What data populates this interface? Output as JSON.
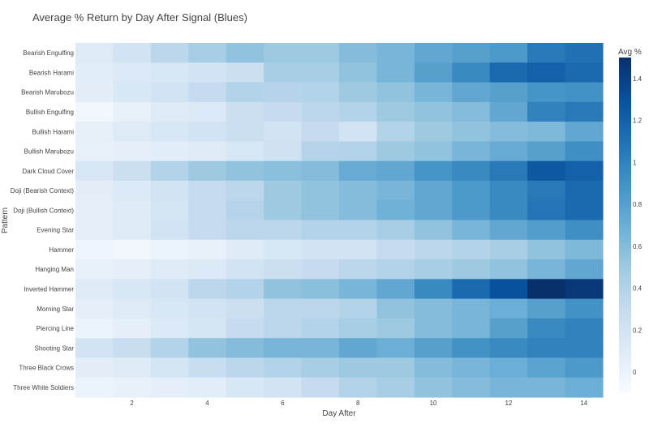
{
  "chart_data": {
    "type": "heatmap",
    "title": "Average % Return by Day After Signal (Blues)",
    "xlabel": "Day After",
    "ylabel": "Pattern",
    "colorbar_title": "Avg %",
    "colorscale": "Blues",
    "zrange": [
      -0.1,
      1.5
    ],
    "x": [
      1,
      2,
      3,
      4,
      5,
      6,
      7,
      8,
      9,
      10,
      11,
      12,
      13,
      14
    ],
    "x_tick_values": [
      2,
      4,
      6,
      8,
      10,
      12,
      14
    ],
    "x_tick_labels": [
      "2",
      "4",
      "6",
      "8",
      "10",
      "12",
      "14"
    ],
    "colorbar_tick_values": [
      0,
      0.2,
      0.4,
      0.6,
      0.8,
      1,
      1.2,
      1.4
    ],
    "colorbar_tick_labels": [
      "0",
      "0.2",
      "0.4",
      "0.6",
      "0.8",
      "1",
      "1.2",
      "1.4"
    ],
    "y": [
      "Bearish Engulfing",
      "Bearish Harami",
      "Bearish Marubozu",
      "Bullish Engulfing",
      "Bullish Harami",
      "Bullish Marubozu",
      "Dark Cloud Cover",
      "Doji (Bearish Context)",
      "Doji (Bullish Context)",
      "Evening Star",
      "Hammer",
      "Hanging Man",
      "Inverted Hammer",
      "Morning Star",
      "Piercing Line",
      "Shooting Star",
      "Three Black Crows",
      "Three White Soldiers"
    ],
    "z": [
      [
        0.1,
        0.2,
        0.35,
        0.45,
        0.55,
        0.5,
        0.5,
        0.6,
        0.65,
        0.75,
        0.8,
        0.85,
        1.05,
        1.1
      ],
      [
        0.08,
        0.12,
        0.15,
        0.2,
        0.25,
        0.45,
        0.45,
        0.55,
        0.65,
        0.8,
        0.95,
        1.15,
        1.2,
        1.15
      ],
      [
        0.06,
        0.14,
        0.2,
        0.3,
        0.4,
        0.38,
        0.4,
        0.5,
        0.55,
        0.65,
        0.75,
        0.8,
        0.88,
        0.9
      ],
      [
        -0.05,
        0.02,
        0.1,
        0.12,
        0.25,
        0.3,
        0.35,
        0.4,
        0.5,
        0.55,
        0.6,
        0.75,
        1.0,
        1.05
      ],
      [
        0.04,
        0.1,
        0.15,
        0.2,
        0.25,
        0.2,
        0.3,
        0.2,
        0.4,
        0.5,
        0.55,
        0.6,
        0.62,
        0.75
      ],
      [
        0.02,
        0.05,
        0.08,
        0.1,
        0.15,
        0.22,
        0.38,
        0.4,
        0.5,
        0.55,
        0.65,
        0.72,
        0.8,
        0.92
      ],
      [
        0.15,
        0.25,
        0.4,
        0.5,
        0.55,
        0.58,
        0.6,
        0.72,
        0.75,
        0.88,
        0.95,
        1.05,
        1.25,
        1.2
      ],
      [
        0.06,
        0.12,
        0.2,
        0.3,
        0.35,
        0.5,
        0.55,
        0.6,
        0.65,
        0.75,
        0.85,
        0.95,
        1.05,
        1.15
      ],
      [
        0.05,
        0.1,
        0.18,
        0.3,
        0.38,
        0.5,
        0.55,
        0.6,
        0.68,
        0.75,
        0.85,
        0.95,
        1.08,
        1.15
      ],
      [
        0.05,
        0.1,
        0.2,
        0.3,
        0.35,
        0.35,
        0.4,
        0.4,
        0.45,
        0.55,
        0.65,
        0.75,
        0.82,
        0.92
      ],
      [
        -0.03,
        -0.05,
        0.0,
        0.02,
        0.1,
        0.15,
        0.2,
        0.2,
        0.3,
        0.35,
        0.4,
        0.45,
        0.55,
        0.62
      ],
      [
        0.02,
        0.05,
        0.1,
        0.12,
        0.2,
        0.25,
        0.3,
        0.35,
        0.4,
        0.45,
        0.5,
        0.55,
        0.65,
        0.75
      ],
      [
        0.1,
        0.15,
        0.2,
        0.35,
        0.4,
        0.55,
        0.58,
        0.65,
        0.75,
        0.95,
        1.15,
        1.3,
        1.5,
        1.45
      ],
      [
        0.05,
        0.1,
        0.15,
        0.2,
        0.25,
        0.35,
        0.35,
        0.4,
        0.55,
        0.6,
        0.65,
        0.7,
        0.8,
        0.9
      ],
      [
        0.0,
        0.05,
        0.12,
        0.18,
        0.3,
        0.35,
        0.4,
        0.45,
        0.5,
        0.6,
        0.65,
        0.8,
        0.95,
        1.0
      ],
      [
        0.2,
        0.28,
        0.4,
        0.55,
        0.6,
        0.65,
        0.65,
        0.75,
        0.7,
        0.8,
        0.9,
        0.95,
        1.0,
        1.0
      ],
      [
        0.06,
        0.1,
        0.18,
        0.28,
        0.35,
        0.4,
        0.45,
        0.5,
        0.5,
        0.6,
        0.65,
        0.7,
        0.78,
        0.85
      ],
      [
        0.0,
        0.02,
        0.05,
        0.08,
        0.15,
        0.2,
        0.3,
        0.4,
        0.45,
        0.55,
        0.6,
        0.65,
        0.65,
        0.7
      ]
    ]
  }
}
